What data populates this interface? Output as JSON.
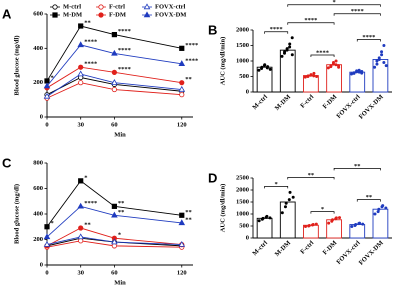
{
  "chart_data": [
    {
      "type": "line",
      "panel_label": "A",
      "ylabel": "Blood glucose (mg/dl)",
      "xlabel": "Min",
      "legend": true,
      "x": [
        0,
        30,
        60,
        120
      ],
      "xlim": [
        0,
        130
      ],
      "xticks": [
        0,
        30,
        60,
        120
      ],
      "ylim": [
        0,
        600
      ],
      "yticks": [
        0,
        200,
        400,
        600
      ],
      "series": [
        {
          "name": "M-ctrl",
          "color": "#000000",
          "marker": "circle",
          "filled": false,
          "values": [
            130,
            230,
            190,
            150
          ],
          "point_labels": [
            null,
            null,
            null,
            null
          ]
        },
        {
          "name": "M-DM",
          "color": "#000000",
          "marker": "square",
          "filled": true,
          "values": [
            210,
            530,
            480,
            400
          ],
          "point_labels": [
            "*",
            "**",
            "****",
            "****"
          ]
        },
        {
          "name": "F-ctrl",
          "color": "#e0201b",
          "marker": "circle",
          "filled": false,
          "values": [
            110,
            200,
            160,
            130
          ],
          "point_labels": [
            null,
            null,
            null,
            null
          ]
        },
        {
          "name": "F-DM",
          "color": "#e0201b",
          "marker": "circle",
          "filled": true,
          "values": [
            170,
            290,
            260,
            200
          ],
          "point_labels": [
            null,
            "****",
            "****",
            "**"
          ]
        },
        {
          "name": "FOVX-ctrl",
          "color": "#1f3bbf",
          "marker": "triangle",
          "filled": false,
          "values": [
            120,
            250,
            200,
            160
          ],
          "point_labels": [
            null,
            null,
            null,
            null
          ]
        },
        {
          "name": "FOVX-DM",
          "color": "#1f3bbf",
          "marker": "triangle",
          "filled": true,
          "values": [
            180,
            420,
            370,
            310
          ],
          "point_labels": [
            null,
            "****",
            "****",
            "****"
          ]
        }
      ]
    },
    {
      "type": "bar",
      "panel_label": "B",
      "ylabel": "AUC (mg/dl/min)",
      "categories": [
        "M-ctrl",
        "M-DM",
        "F-ctrl",
        "F-DM",
        "FOVX-ctrl",
        "FOVX-DM"
      ],
      "values": [
        800,
        1350,
        530,
        880,
        640,
        1050
      ],
      "colors": [
        "#000000",
        "#000000",
        "#e0201b",
        "#e0201b",
        "#1f3bbf",
        "#1f3bbf"
      ],
      "points": [
        [
          700,
          760,
          800,
          850,
          880,
          780,
          820,
          730
        ],
        [
          1150,
          1250,
          1300,
          1350,
          1400,
          1450,
          1550,
          1750,
          1200
        ],
        [
          480,
          500,
          520,
          540,
          560,
          520,
          600,
          500
        ],
        [
          780,
          820,
          850,
          900,
          950,
          880,
          1000,
          850,
          800
        ],
        [
          580,
          600,
          620,
          650,
          680,
          700,
          640,
          610,
          660
        ],
        [
          800,
          900,
          1000,
          1050,
          1100,
          1200,
          1300,
          1500,
          950,
          850
        ]
      ],
      "ylim": [
        0,
        2000
      ],
      "yticks": [
        0,
        500,
        1000,
        1500,
        2000
      ],
      "brackets": [
        {
          "between": [
            "M-ctrl",
            "M-DM"
          ],
          "label": "****"
        },
        {
          "between": [
            "F-ctrl",
            "F-DM"
          ],
          "label": "****"
        },
        {
          "between": [
            "FOVX-ctrl",
            "FOVX-DM"
          ],
          "label": "****"
        },
        {
          "between": [
            "M-DM",
            "F-DM"
          ],
          "label": "****"
        },
        {
          "between": [
            "F-DM",
            "FOVX-DM"
          ],
          "label": "****"
        },
        {
          "between": [
            "M-DM",
            "FOVX-DM"
          ],
          "label": "*"
        }
      ]
    },
    {
      "type": "line",
      "panel_label": "C",
      "ylabel": "Blood glucose (mg/dl)",
      "xlabel": "Min",
      "legend": false,
      "x": [
        0,
        30,
        60,
        120
      ],
      "xlim": [
        0,
        130
      ],
      "xticks": [
        0,
        30,
        60,
        120
      ],
      "ylim": [
        0,
        800
      ],
      "yticks": [
        0,
        200,
        400,
        600,
        800
      ],
      "series": [
        {
          "name": "M-ctrl",
          "color": "#000000",
          "marker": "circle",
          "filled": false,
          "values": [
            150,
            210,
            180,
            150
          ],
          "point_labels": [
            null,
            null,
            null,
            null
          ]
        },
        {
          "name": "M-DM",
          "color": "#000000",
          "marker": "square",
          "filled": true,
          "values": [
            300,
            660,
            460,
            390
          ],
          "point_labels": [
            "*",
            "*",
            "**",
            "**"
          ]
        },
        {
          "name": "F-ctrl",
          "color": "#e0201b",
          "marker": "circle",
          "filled": false,
          "values": [
            140,
            190,
            150,
            140
          ],
          "point_labels": [
            null,
            null,
            null,
            null
          ]
        },
        {
          "name": "F-DM",
          "color": "#e0201b",
          "marker": "circle",
          "filled": true,
          "values": [
            150,
            290,
            210,
            160
          ],
          "point_labels": [
            null,
            "**",
            "*",
            null
          ]
        },
        {
          "name": "FOVX-ctrl",
          "color": "#1f3bbf",
          "marker": "triangle",
          "filled": false,
          "values": [
            160,
            220,
            180,
            160
          ],
          "point_labels": [
            null,
            null,
            null,
            null
          ]
        },
        {
          "name": "FOVX-DM",
          "color": "#1f3bbf",
          "marker": "triangle",
          "filled": true,
          "values": [
            220,
            460,
            390,
            330
          ],
          "point_labels": [
            null,
            "****",
            "**",
            "**"
          ]
        }
      ]
    },
    {
      "type": "bar",
      "panel_label": "D",
      "ylabel": "AUC (mg/dl/min)",
      "categories": [
        "M-ctrl",
        "M-DM",
        "F-ctrl",
        "F-DM",
        "FOVX-ctrl",
        "FOVX-DM"
      ],
      "values": [
        820,
        1500,
        530,
        760,
        560,
        1200
      ],
      "colors": [
        "#000000",
        "#000000",
        "#e0201b",
        "#e0201b",
        "#1f3bbf",
        "#1f3bbf"
      ],
      "points": [
        [
          720,
          780,
          820,
          860,
          900,
          840
        ],
        [
          1050,
          1300,
          1450,
          1600,
          1900,
          1700
        ],
        [
          480,
          500,
          520,
          540,
          560,
          580
        ],
        [
          620,
          700,
          760,
          800,
          840,
          850
        ],
        [
          480,
          520,
          560,
          600,
          620,
          580
        ],
        [
          1000,
          1100,
          1200,
          1300,
          1350,
          1250
        ]
      ],
      "ylim": [
        0,
        2500
      ],
      "yticks": [
        0,
        500,
        1000,
        1500,
        2000,
        2500
      ],
      "brackets": [
        {
          "between": [
            "M-ctrl",
            "M-DM"
          ],
          "label": "*"
        },
        {
          "between": [
            "F-ctrl",
            "F-DM"
          ],
          "label": "*"
        },
        {
          "between": [
            "FOVX-ctrl",
            "FOVX-DM"
          ],
          "label": "**"
        },
        {
          "between": [
            "M-DM",
            "F-DM"
          ],
          "label": "**"
        },
        {
          "between": [
            "F-DM",
            "FOVX-DM"
          ],
          "label": "**"
        }
      ]
    }
  ]
}
